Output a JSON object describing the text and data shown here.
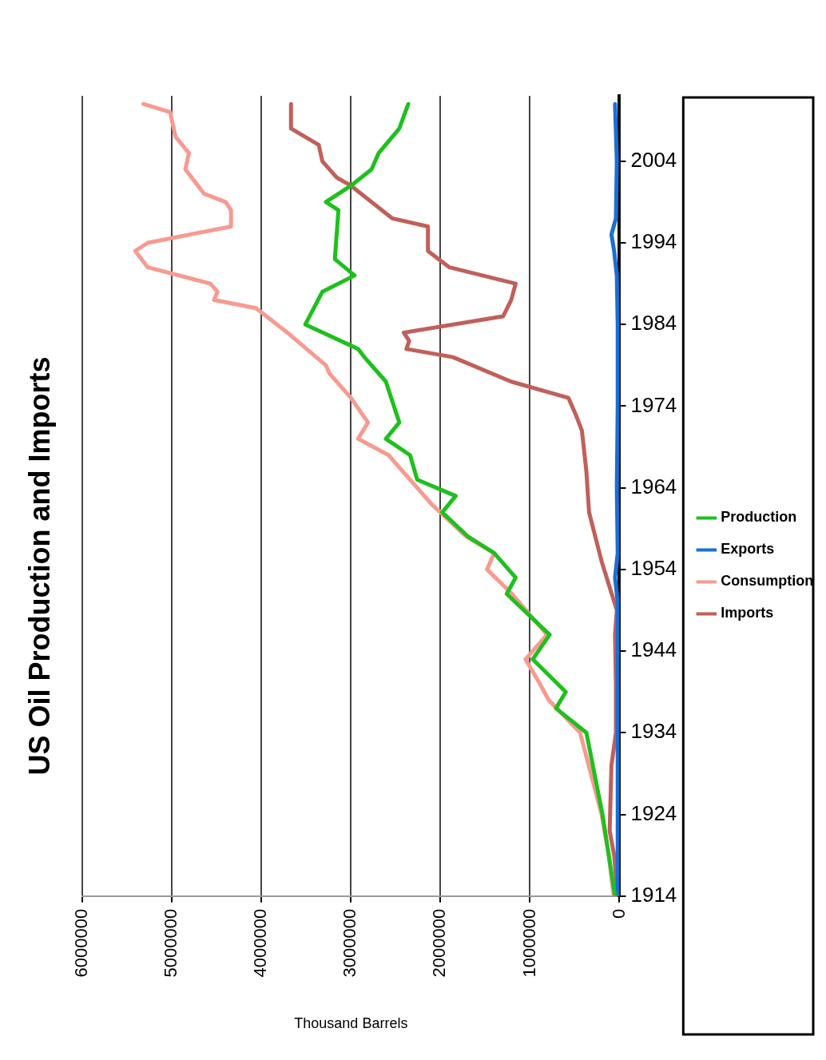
{
  "chart_data": {
    "type": "line",
    "title": "US Oil Production and Imports",
    "xlabel": "Thousand Barrels",
    "ylim": [
      1914,
      2012
    ],
    "yticks": [
      1914,
      1924,
      1934,
      1944,
      1954,
      1964,
      1974,
      1984,
      1994,
      2004
    ],
    "xlim": [
      6000000,
      0
    ],
    "xticks": [
      0,
      1000000,
      2000000,
      3000000,
      4000000,
      5000000,
      6000000
    ],
    "grid": "x",
    "legend": "right",
    "series": [
      {
        "name": "Production",
        "color": "#1ec01e",
        "values": [
          1914,
          1924,
          1934,
          1937,
          1939,
          1943,
          1946,
          1951,
          1953,
          1956,
          1958,
          1961,
          1963,
          1965,
          1968,
          1970,
          1972,
          1977,
          1980,
          1981,
          1984,
          1988,
          1990,
          1992,
          1998,
          1999,
          2001,
          2003,
          2005,
          2008,
          2011
        ],
        "x": [
          50000,
          190000,
          370000,
          710000,
          600000,
          970000,
          780000,
          1260000,
          1160000,
          1400000,
          1690000,
          1980000,
          1830000,
          2260000,
          2340000,
          2610000,
          2460000,
          2610000,
          2850000,
          2920000,
          3510000,
          3320000,
          2960000,
          3180000,
          3140000,
          3280000,
          3000000,
          2770000,
          2690000,
          2460000,
          2360000
        ]
      },
      {
        "name": "Exports",
        "color": "#1a6fd6",
        "values": [
          1914,
          1950,
          1953,
          1956,
          1964,
          1974,
          1984,
          1990,
          1993,
          1995,
          1997,
          2004,
          2011
        ],
        "x": [
          20000,
          20000,
          50000,
          20000,
          30000,
          20000,
          20000,
          30000,
          60000,
          90000,
          40000,
          30000,
          50000
        ]
      },
      {
        "name": "Consumption",
        "color": "#f79a90",
        "values": [
          1914,
          1919,
          1924,
          1934,
          1938,
          1940,
          1943,
          1946,
          1951,
          1954,
          1956,
          1958,
          1962,
          1965,
          1968,
          1970,
          1972,
          1975,
          1978,
          1979,
          1983,
          1986,
          1987,
          1988,
          1989,
          1991,
          1993,
          1994,
          1996,
          1998,
          1999,
          2000,
          2003,
          2005,
          2007,
          2010,
          2011
        ],
        "x": [
          65000,
          120000,
          200000,
          440000,
          790000,
          890000,
          1050000,
          810000,
          1200000,
          1480000,
          1400000,
          1710000,
          2100000,
          2340000,
          2580000,
          2920000,
          2810000,
          3000000,
          3240000,
          3280000,
          3710000,
          4060000,
          4530000,
          4490000,
          4570000,
          5270000,
          5410000,
          5270000,
          4340000,
          4340000,
          4400000,
          4640000,
          4850000,
          4810000,
          4960000,
          5020000,
          5320000
        ]
      },
      {
        "name": "Imports",
        "color": "#c0605a",
        "values": [
          1914,
          1919,
          1922,
          1926,
          1930,
          1934,
          1940,
          1946,
          1949,
          1955,
          1961,
          1966,
          1971,
          1973,
          1975,
          1977,
          1980,
          1981,
          1982,
          1983,
          1985,
          1987,
          1989,
          1991,
          1993,
          1996,
          1997,
          2001,
          2002,
          2004,
          2006,
          2008,
          2011
        ],
        "x": [
          20000,
          60000,
          110000,
          100000,
          90000,
          40000,
          40000,
          50000,
          30000,
          200000,
          340000,
          370000,
          420000,
          490000,
          570000,
          1210000,
          1860000,
          2380000,
          2350000,
          2410000,
          1300000,
          1210000,
          1160000,
          1900000,
          2140000,
          2140000,
          2540000,
          3000000,
          3160000,
          3320000,
          3360000,
          3670000,
          3670000
        ]
      }
    ]
  }
}
